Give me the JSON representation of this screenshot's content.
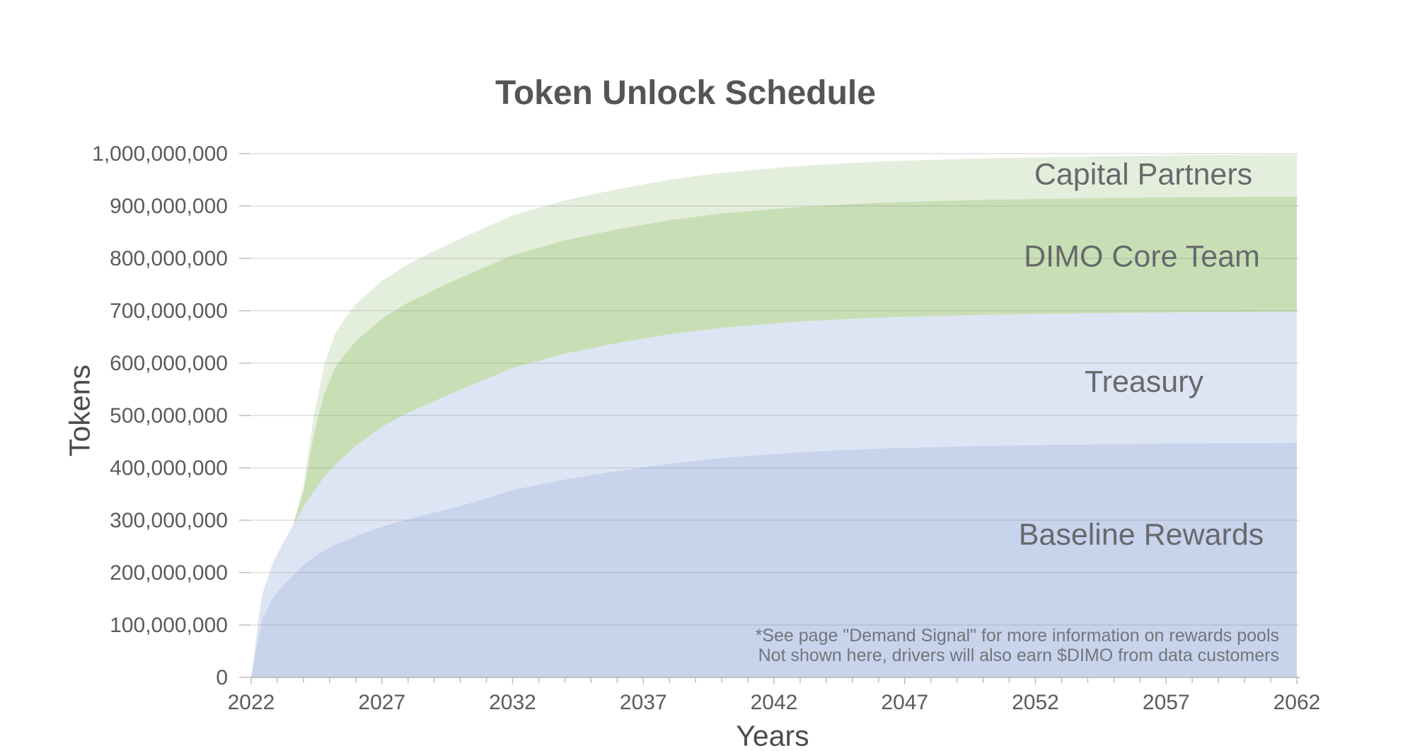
{
  "chart": {
    "title": "Token Unlock Schedule",
    "x_axis_label": "Years",
    "y_axis_label": "Tokens",
    "annotation_line1": "*See page \"Demand Signal\" for more information on rewards pools",
    "annotation_line2": "Not shown here, drivers will also earn $DIMO from data customers",
    "colors": {
      "background": "#ffffff",
      "title_text": "#545557",
      "axis_title_text": "#4a4b4d",
      "tick_label_text": "#595b5d",
      "series_label_text": "#67696c",
      "annotation_text": "#72757a",
      "axis_line": "#bfbfbf",
      "gridline": "#808080"
    }
  },
  "chart_data": {
    "type": "area",
    "stacked": true,
    "title": "Token Unlock Schedule",
    "xlabel": "Years",
    "ylabel": "Tokens",
    "xlim": [
      2022,
      2062
    ],
    "ylim": [
      0,
      1000000000
    ],
    "grid": "horizontal",
    "legend": "inline-labels-on-areas",
    "total_supply": 1000000000,
    "values_unit": "millions of tokens",
    "x_tick_labels": [
      "2022",
      "2027",
      "2032",
      "2037",
      "2042",
      "2047",
      "2052",
      "2057",
      "2062"
    ],
    "x_tick_years": [
      2022,
      2027,
      2032,
      2037,
      2042,
      2047,
      2052,
      2057,
      2062
    ],
    "x_minor_tick_step_years": 1,
    "y_tick_labels": [
      "0",
      "100,000,000",
      "200,000,000",
      "300,000,000",
      "400,000,000",
      "500,000,000",
      "600,000,000",
      "700,000,000",
      "800,000,000",
      "900,000,000",
      "1,000,000,000"
    ],
    "y_tick_values_millions": [
      0,
      100,
      200,
      300,
      400,
      500,
      600,
      700,
      800,
      900,
      1000
    ],
    "x": [
      2022,
      2022.4,
      2022.8,
      2023.2,
      2023.6,
      2024,
      2024.4,
      2024.8,
      2025.2,
      2025.6,
      2026,
      2027,
      2028,
      2029,
      2030,
      2032,
      2034,
      2036,
      2038,
      2040,
      2043,
      2046,
      2050,
      2054,
      2058,
      2062
    ],
    "series": [
      {
        "name": "Baseline Rewards",
        "color": "#c8d3ec",
        "approx_final_total_millions": 450,
        "values_millions": [
          0,
          110,
          150,
          175,
          195,
          215,
          230,
          243,
          253,
          261,
          270,
          288,
          302,
          315,
          327,
          358,
          378,
          394,
          408,
          419,
          430,
          437,
          442,
          445,
          447,
          448
        ]
      },
      {
        "name": "Treasury",
        "color": "#dde5f4",
        "approx_final_total_millions": 250,
        "values_millions": [
          0,
          45,
          65,
          80,
          95,
          110,
          125,
          140,
          152,
          162,
          172,
          190,
          203,
          212,
          222,
          233,
          240,
          244,
          247,
          248.5,
          249.5,
          250,
          250,
          250,
          250,
          250
        ]
      },
      {
        "name": "DIMO Core Team",
        "color": "#c8dfb6",
        "approx_final_total_millions": 220,
        "values_millions": [
          0,
          0,
          0,
          0,
          0,
          30,
          110,
          160,
          185,
          195,
          200,
          207,
          211,
          213,
          214,
          215.5,
          216.5,
          217.5,
          218,
          218.5,
          219,
          219.5,
          220,
          220,
          220,
          220
        ]
      },
      {
        "name": "Capital Partners",
        "color": "#e4eedc",
        "approx_final_total_millions": 80,
        "values_millions": [
          0,
          0,
          0,
          0,
          0,
          10,
          35,
          55,
          65,
          68,
          70,
          72,
          73,
          74,
          74.5,
          75.5,
          76,
          76.5,
          77,
          77.5,
          78,
          78.5,
          79,
          79.5,
          80,
          80
        ]
      }
    ]
  }
}
